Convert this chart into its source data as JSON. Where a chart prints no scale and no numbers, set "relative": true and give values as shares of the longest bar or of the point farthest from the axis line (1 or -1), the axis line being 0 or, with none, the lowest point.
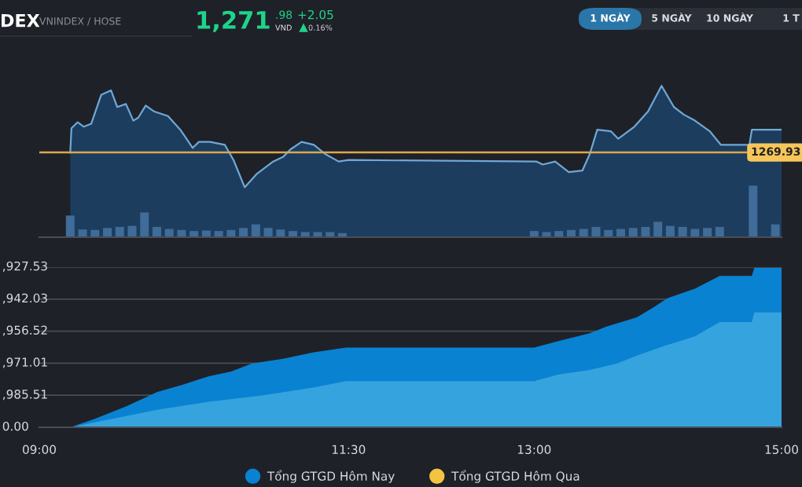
{
  "chart_data": [
    {
      "type": "area",
      "title": "DEX",
      "subtitle": "VNINDEX / HOSE",
      "annotations": [
        "1,271",
        ".98",
        "VND",
        "+2.05",
        "0.16%",
        "1 NGÀY",
        "5 NGÀY",
        "10 NGÀY",
        "1 T",
        "1269.93"
      ],
      "relative": true,
      "xlim": [
        9,
        15
      ],
      "grid": false,
      "series": [
        {
          "color": "#6fa8d6",
          "x": [
            9.25,
            9.26,
            9.31,
            9.36,
            9.42,
            9.5,
            9.58,
            9.63,
            9.7,
            9.76,
            9.8,
            9.86,
            9.93,
            10.04,
            10.14,
            10.24,
            10.29,
            10.38,
            10.5,
            10.57,
            10.66,
            10.76,
            10.89,
            10.97,
            11.03,
            11.12,
            11.22,
            11.31,
            11.42,
            11.5,
            13.02,
            13.07,
            13.17,
            13.28,
            13.39,
            13.45,
            13.51,
            13.62,
            13.68,
            13.81,
            13.92,
            14.03,
            14.13,
            14.21,
            14.3,
            14.42,
            14.51,
            14.74,
            14.76,
            15.0
          ],
          "values": [
            0.56,
            0.72,
            0.76,
            0.73,
            0.75,
            0.94,
            0.97,
            0.86,
            0.88,
            0.77,
            0.79,
            0.87,
            0.83,
            0.8,
            0.71,
            0.59,
            0.63,
            0.63,
            0.61,
            0.51,
            0.33,
            0.42,
            0.5,
            0.53,
            0.58,
            0.63,
            0.61,
            0.55,
            0.5,
            0.51,
            0.5,
            0.48,
            0.5,
            0.43,
            0.44,
            0.55,
            0.71,
            0.7,
            0.65,
            0.73,
            0.83,
            1.0,
            0.86,
            0.81,
            0.77,
            0.7,
            0.61,
            0.61,
            0.71,
            0.71
          ]
        }
      ],
      "ref_lines": [
        {
          "axis": "y",
          "value": 0.56,
          "color": "#d9a94c"
        }
      ]
    },
    {
      "type": "bar",
      "relative": true,
      "xlim": [
        9,
        15
      ],
      "series": [
        {
          "color": "#3f6c98",
          "x": [
            9.25,
            9.35,
            9.45,
            9.55,
            9.65,
            9.75,
            9.85,
            9.95,
            10.05,
            10.15,
            10.25,
            10.35,
            10.45,
            10.55,
            10.65,
            10.75,
            10.85,
            10.95,
            11.05,
            11.15,
            11.25,
            11.35,
            11.45,
            13.0,
            13.1,
            13.2,
            13.3,
            13.4,
            13.5,
            13.6,
            13.7,
            13.8,
            13.9,
            14.0,
            14.1,
            14.2,
            14.3,
            14.4,
            14.5,
            14.77,
            14.95
          ],
          "values": [
            0.42,
            0.15,
            0.14,
            0.18,
            0.2,
            0.22,
            0.48,
            0.2,
            0.16,
            0.14,
            0.12,
            0.13,
            0.12,
            0.14,
            0.18,
            0.25,
            0.18,
            0.15,
            0.12,
            0.1,
            0.1,
            0.1,
            0.08,
            0.12,
            0.1,
            0.12,
            0.14,
            0.16,
            0.2,
            0.14,
            0.16,
            0.18,
            0.2,
            0.3,
            0.22,
            0.2,
            0.16,
            0.18,
            0.2,
            1.0,
            0.25
          ]
        }
      ]
    },
    {
      "type": "area",
      "relative": true,
      "xlim": [
        9,
        15
      ],
      "xticks": [
        {
          "value": 9,
          "label": "09:00"
        },
        {
          "value": 11.5,
          "label": "11:30"
        },
        {
          "value": 13,
          "label": "13:00"
        },
        {
          "value": 15,
          "label": "15:00"
        }
      ],
      "annotations": [
        "0.00",
        ",985.51",
        ",971.01",
        ",956.52",
        ",942.03",
        ",927.53"
      ],
      "grid": "y",
      "legend": "bottom",
      "series": [
        {
          "name": "Tổng GTGD Hôm Nay",
          "color": "#0a82d2",
          "x": [
            9.0,
            9.25,
            9.44,
            9.7,
            9.95,
            10.17,
            10.37,
            10.55,
            10.72,
            10.97,
            11.22,
            11.48,
            11.5,
            13.0,
            13.19,
            13.45,
            13.58,
            13.83,
            13.96,
            14.08,
            14.3,
            14.5,
            14.76,
            14.78,
            15.0
          ],
          "values": [
            0,
            0,
            0.05,
            0.13,
            0.22,
            0.27,
            0.32,
            0.35,
            0.4,
            0.43,
            0.47,
            0.5,
            0.5,
            0.5,
            0.54,
            0.59,
            0.63,
            0.69,
            0.75,
            0.81,
            0.87,
            0.95,
            0.95,
            1.0,
            1.0
          ]
        },
        {
          "color": "#35a4de",
          "x": [
            9.0,
            9.25,
            9.7,
            9.95,
            10.37,
            10.8,
            11.22,
            11.48,
            11.5,
            13.0,
            13.19,
            13.45,
            13.67,
            13.83,
            14.05,
            14.3,
            14.5,
            14.76,
            14.78,
            15.0
          ],
          "values": [
            0,
            0,
            0.07,
            0.11,
            0.16,
            0.2,
            0.25,
            0.29,
            0.29,
            0.29,
            0.33,
            0.36,
            0.4,
            0.45,
            0.51,
            0.57,
            0.66,
            0.66,
            0.72,
            0.72
          ]
        },
        {
          "name": "Tổng GTGD Hôm Qua",
          "color": "#f5c342"
        }
      ]
    }
  ]
}
